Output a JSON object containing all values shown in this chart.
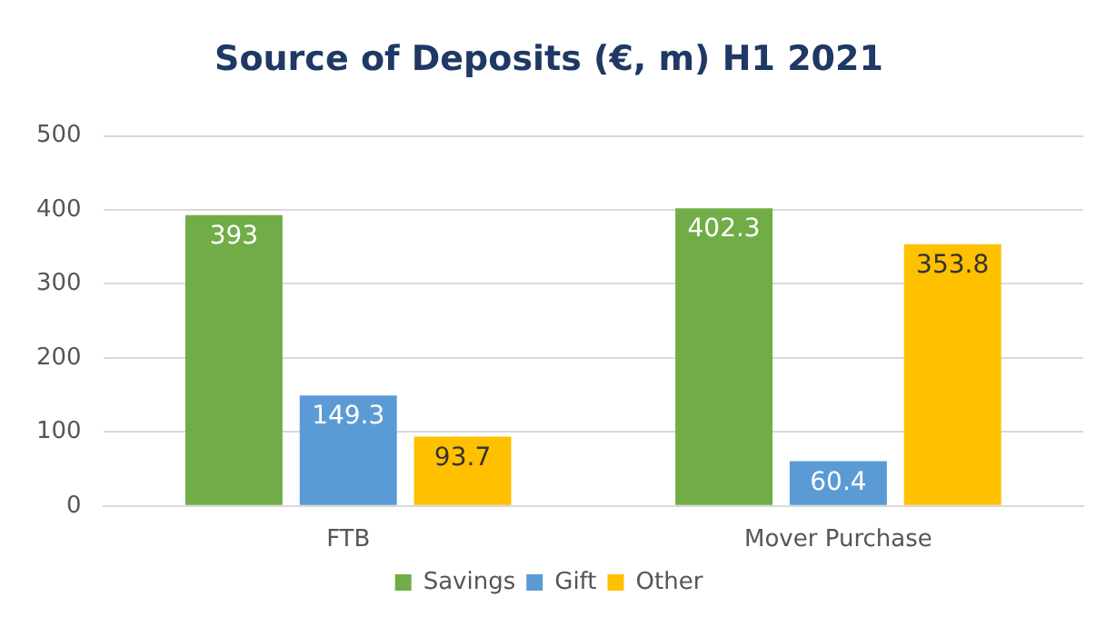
{
  "chart_data": {
    "type": "bar",
    "title": "Source of Deposits (€, m) H1 2021",
    "categories": [
      "FTB",
      "Mover Purchase"
    ],
    "series": [
      {
        "name": "Savings",
        "color": "#70ad47",
        "values": [
          393,
          402.3
        ]
      },
      {
        "name": "Gift",
        "color": "#5b9bd5",
        "values": [
          149.3,
          60.4
        ]
      },
      {
        "name": "Other",
        "color": "#ffc000",
        "values": [
          93.7,
          353.8
        ]
      }
    ],
    "ylim": [
      0,
      500
    ],
    "yticks": [
      0,
      100,
      200,
      300,
      400,
      500
    ],
    "grid": "y",
    "legend": "bottom",
    "data_labels": true
  }
}
